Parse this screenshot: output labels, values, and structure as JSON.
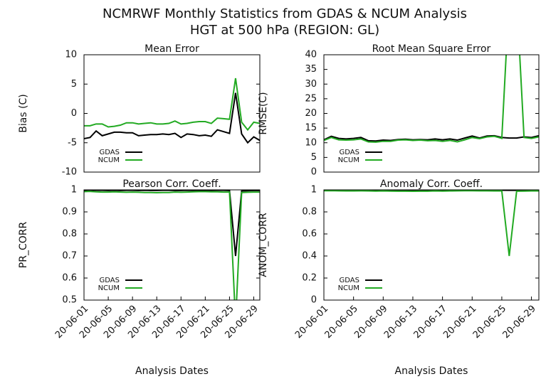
{
  "title": "NCMRWF Monthly Statistics from GDAS & NCUM Analysis",
  "subtitle": "HGT at 500 hPa (REGION: GL)",
  "chart_data": [
    {
      "type": "line",
      "title": "Mean Error",
      "ylabel": "Bias (C)",
      "ylim": [
        -10,
        10
      ],
      "yticks": [
        -10,
        -5,
        0,
        5,
        10
      ],
      "legend": "lower left",
      "series": [
        {
          "name": "GDAS",
          "color": "#000000",
          "values": [
            -4.3,
            -4.1,
            -3.0,
            -3.8,
            -3.5,
            -3.2,
            -3.2,
            -3.3,
            -3.3,
            -3.8,
            -3.7,
            -3.6,
            -3.6,
            -3.5,
            -3.6,
            -3.4,
            -4.1,
            -3.5,
            -3.6,
            -3.8,
            -3.7,
            -3.9,
            -2.8,
            -3.1,
            -3.4,
            3.5,
            -3.5,
            -5.0,
            -4.0,
            -4.6
          ]
        },
        {
          "name": "NCUM",
          "color": "#22aa22",
          "values": [
            -2.1,
            -2.1,
            -1.8,
            -1.8,
            -2.3,
            -2.2,
            -2.0,
            -1.6,
            -1.6,
            -1.8,
            -1.7,
            -1.6,
            -1.8,
            -1.8,
            -1.7,
            -1.3,
            -1.8,
            -1.7,
            -1.5,
            -1.4,
            -1.4,
            -1.7,
            -0.8,
            -0.9,
            -1.0,
            6.0,
            -1.5,
            -2.8,
            -1.5,
            -1.7
          ]
        }
      ]
    },
    {
      "type": "line",
      "title": "Root Mean Square Error",
      "ylabel": "RMSE(C)",
      "ylim": [
        0,
        40
      ],
      "yticks": [
        0,
        5,
        10,
        15,
        20,
        25,
        30,
        35,
        40
      ],
      "legend": "lower left",
      "series": [
        {
          "name": "GDAS",
          "color": "#000000",
          "values": [
            11.0,
            12.2,
            11.5,
            11.3,
            11.5,
            11.8,
            10.7,
            10.6,
            10.9,
            10.8,
            11.1,
            11.2,
            11.0,
            11.1,
            11.0,
            11.3,
            11.0,
            11.3,
            10.9,
            11.6,
            12.3,
            11.6,
            12.3,
            12.4,
            11.8,
            11.6,
            11.6,
            12.0,
            11.8,
            12.4
          ]
        },
        {
          "name": "NCUM",
          "color": "#22aa22",
          "values": [
            10.8,
            11.8,
            11.0,
            10.9,
            11.0,
            11.3,
            10.3,
            10.2,
            10.5,
            10.5,
            10.9,
            11.0,
            10.8,
            10.9,
            10.7,
            10.8,
            10.5,
            10.8,
            10.3,
            11.0,
            11.8,
            11.4,
            12.0,
            12.2,
            11.5,
            60,
            60,
            11.8,
            11.5,
            12.0
          ]
        }
      ]
    },
    {
      "type": "line",
      "title": "Pearson Corr. Coeff.",
      "ylabel": "PR_CORR",
      "xlabel": "Analysis Dates",
      "ylim": [
        0.5,
        1
      ],
      "yticks": [
        0.5,
        0.6,
        0.7,
        0.8,
        0.9,
        1
      ],
      "legend": "lower left",
      "categories": [
        "20-06-01",
        null,
        null,
        null,
        "20-06-05",
        null,
        null,
        null,
        "20-06-09",
        null,
        null,
        null,
        "20-06-13",
        null,
        null,
        null,
        "20-06-17",
        null,
        null,
        null,
        "20-06-21",
        null,
        null,
        null,
        "20-06-25",
        null,
        null,
        null,
        "20-06-29",
        null
      ],
      "series": [
        {
          "name": "GDAS",
          "color": "#000000",
          "values": [
            0.998,
            0.999,
            0.998,
            0.998,
            0.997,
            0.998,
            0.997,
            0.998,
            0.998,
            0.997,
            0.998,
            0.997,
            0.997,
            0.998,
            0.998,
            0.997,
            0.997,
            0.998,
            0.997,
            0.998,
            0.998,
            0.997,
            0.998,
            0.998,
            0.997,
            0.7,
            0.995,
            0.996,
            0.997,
            0.997
          ]
        },
        {
          "name": "NCUM",
          "color": "#22aa22",
          "values": [
            0.992,
            0.993,
            0.991,
            0.99,
            0.99,
            0.991,
            0.99,
            0.989,
            0.99,
            0.989,
            0.988,
            0.988,
            0.987,
            0.988,
            0.988,
            0.99,
            0.989,
            0.99,
            0.991,
            0.992,
            0.992,
            0.991,
            0.991,
            0.99,
            0.99,
            0.4,
            0.988,
            0.989,
            0.99,
            0.99
          ]
        }
      ]
    },
    {
      "type": "line",
      "title": "Anomaly Corr. Coeff.",
      "ylabel": "ANOM_CORR",
      "xlabel": "Analysis Dates",
      "ylim": [
        0,
        1
      ],
      "yticks": [
        0,
        0.2,
        0.4,
        0.6,
        0.8,
        1
      ],
      "legend": "lower left",
      "categories": [
        "20-06-01",
        null,
        null,
        null,
        "20-06-05",
        null,
        null,
        null,
        "20-06-09",
        null,
        null,
        null,
        "20-06-13",
        null,
        null,
        null,
        "20-06-17",
        null,
        null,
        null,
        "20-06-21",
        null,
        null,
        null,
        "20-06-25",
        null,
        null,
        null,
        "20-06-29",
        null
      ],
      "series": [
        {
          "name": "GDAS",
          "color": "#000000",
          "values": [
            0.998,
            0.999,
            0.998,
            0.998,
            0.997,
            0.998,
            0.997,
            0.998,
            0.998,
            0.997,
            0.998,
            0.997,
            0.997,
            0.998,
            0.998,
            0.997,
            0.997,
            0.998,
            0.997,
            0.998,
            0.998,
            0.997,
            0.998,
            0.998,
            0.997,
            0.996,
            0.996,
            0.997,
            0.997,
            0.997
          ]
        },
        {
          "name": "NCUM",
          "color": "#22aa22",
          "values": [
            0.992,
            0.993,
            0.991,
            0.99,
            0.99,
            0.991,
            0.99,
            0.989,
            0.99,
            0.989,
            0.988,
            0.988,
            0.987,
            0.988,
            0.988,
            0.99,
            0.989,
            0.99,
            0.991,
            0.992,
            0.992,
            0.991,
            0.991,
            0.99,
            0.99,
            0.4,
            0.988,
            0.989,
            0.99,
            0.99
          ]
        }
      ]
    }
  ]
}
